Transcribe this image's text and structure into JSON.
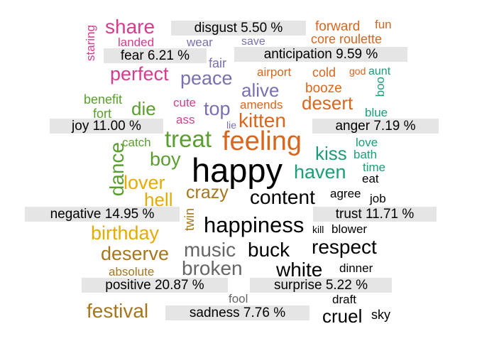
{
  "emotion_labels": [
    {
      "id": "disgust",
      "text": "disgust 5.50 %"
    },
    {
      "id": "fear",
      "text": "fear 6.21 %"
    },
    {
      "id": "anticipation",
      "text": "anticipation 9.59 %"
    },
    {
      "id": "joy",
      "text": "joy 11.00 %"
    },
    {
      "id": "anger",
      "text": "anger 7.19 %"
    },
    {
      "id": "negative",
      "text": "negative 14.95 %"
    },
    {
      "id": "trust",
      "text": "trust 11.71 %"
    },
    {
      "id": "positive",
      "text": "positive 20.87 %"
    },
    {
      "id": "surprise",
      "text": "surprise 5.22 %"
    },
    {
      "id": "sadness",
      "text": "sadness 7.76 %"
    }
  ],
  "colors": {
    "disgust": "#d63c8e",
    "fear": "#7b6fb0",
    "anticipation": "#d9661f",
    "joy": "#5a9e2f",
    "anger": "#1b9e77",
    "negative": "#e6ab02",
    "trust": "#a6761d",
    "positive": "#666666",
    "surprise": "#000000",
    "sadness": "#a6761d",
    "label_bg": "#e5e5e5"
  },
  "words": [
    {
      "id": "share",
      "text": "share",
      "group": "disgust"
    },
    {
      "id": "landed",
      "text": "landed",
      "group": "disgust"
    },
    {
      "id": "staring",
      "text": "staring",
      "group": "disgust"
    },
    {
      "id": "perfect",
      "text": "perfect",
      "group": "disgust"
    },
    {
      "id": "cute",
      "text": "cute",
      "group": "disgust"
    },
    {
      "id": "ass",
      "text": "ass",
      "group": "disgust"
    },
    {
      "id": "wear",
      "text": "wear",
      "group": "fear"
    },
    {
      "id": "save",
      "text": "save",
      "group": "fear"
    },
    {
      "id": "fair",
      "text": "fair",
      "group": "fear"
    },
    {
      "id": "peace",
      "text": "peace",
      "group": "fear"
    },
    {
      "id": "alive",
      "text": "alive",
      "group": "fear"
    },
    {
      "id": "top",
      "text": "top",
      "group": "fear"
    },
    {
      "id": "lie",
      "text": "lie",
      "group": "fear"
    },
    {
      "id": "forward",
      "text": "forward",
      "group": "anticipation"
    },
    {
      "id": "fun",
      "text": "fun",
      "group": "anticipation"
    },
    {
      "id": "core",
      "text": "core",
      "group": "anticipation"
    },
    {
      "id": "roulette",
      "text": "roulette",
      "group": "anticipation"
    },
    {
      "id": "airport",
      "text": "airport",
      "group": "anticipation"
    },
    {
      "id": "cold",
      "text": "cold",
      "group": "anticipation"
    },
    {
      "id": "god",
      "text": "god",
      "group": "anticipation"
    },
    {
      "id": "booze",
      "text": "booze",
      "group": "anticipation"
    },
    {
      "id": "amends",
      "text": "amends",
      "group": "anticipation"
    },
    {
      "id": "desert",
      "text": "desert",
      "group": "anticipation"
    },
    {
      "id": "kitten",
      "text": "kitten",
      "group": "anticipation"
    },
    {
      "id": "feeling",
      "text": "feeling",
      "group": "anticipation"
    },
    {
      "id": "benefit",
      "text": "benefit",
      "group": "joy"
    },
    {
      "id": "fort",
      "text": "fort",
      "group": "joy"
    },
    {
      "id": "die",
      "text": "die",
      "group": "joy"
    },
    {
      "id": "treat",
      "text": "treat",
      "group": "joy"
    },
    {
      "id": "catch",
      "text": "catch",
      "group": "joy"
    },
    {
      "id": "boy",
      "text": "boy",
      "group": "joy"
    },
    {
      "id": "dance",
      "text": "dance",
      "group": "joy"
    },
    {
      "id": "aunt",
      "text": "aunt",
      "group": "anger"
    },
    {
      "id": "boo",
      "text": "boo",
      "group": "anger"
    },
    {
      "id": "blue",
      "text": "blue",
      "group": "anger"
    },
    {
      "id": "love",
      "text": "love",
      "group": "anger"
    },
    {
      "id": "kiss",
      "text": "kiss",
      "group": "anger"
    },
    {
      "id": "bath",
      "text": "bath",
      "group": "anger"
    },
    {
      "id": "time",
      "text": "time",
      "group": "anger"
    },
    {
      "id": "haven",
      "text": "haven",
      "group": "anger"
    },
    {
      "id": "happy",
      "text": "happy",
      "group": "surprise"
    },
    {
      "id": "lover",
      "text": "lover",
      "group": "negative"
    },
    {
      "id": "hell",
      "text": "hell",
      "group": "negative"
    },
    {
      "id": "birthday",
      "text": "birthday",
      "group": "negative"
    },
    {
      "id": "crazy",
      "text": "crazy",
      "group": "trust"
    },
    {
      "id": "twin",
      "text": "twin",
      "group": "trust"
    },
    {
      "id": "deserve",
      "text": "deserve",
      "group": "trust"
    },
    {
      "id": "absolute",
      "text": "absolute",
      "group": "trust"
    },
    {
      "id": "festival",
      "text": "festival",
      "group": "trust"
    },
    {
      "id": "content",
      "text": "content",
      "group": "surprise"
    },
    {
      "id": "agree",
      "text": "agree",
      "group": "surprise"
    },
    {
      "id": "eat",
      "text": "eat",
      "group": "surprise"
    },
    {
      "id": "job",
      "text": "job",
      "group": "surprise"
    },
    {
      "id": "happiness",
      "text": "happiness",
      "group": "surprise"
    },
    {
      "id": "kill",
      "text": "kill",
      "group": "surprise"
    },
    {
      "id": "blower",
      "text": "blower",
      "group": "surprise"
    },
    {
      "id": "respect",
      "text": "respect",
      "group": "surprise"
    },
    {
      "id": "buck",
      "text": "buck",
      "group": "surprise"
    },
    {
      "id": "music",
      "text": "music",
      "group": "positive"
    },
    {
      "id": "broken",
      "text": "broken",
      "group": "positive"
    },
    {
      "id": "white",
      "text": "white",
      "group": "surprise"
    },
    {
      "id": "dinner",
      "text": "dinner",
      "group": "surprise"
    },
    {
      "id": "fool",
      "text": "fool",
      "group": "positive"
    },
    {
      "id": "draft",
      "text": "draft",
      "group": "surprise"
    },
    {
      "id": "cruel",
      "text": "cruel",
      "group": "surprise"
    },
    {
      "id": "sky",
      "text": "sky",
      "group": "surprise"
    }
  ]
}
